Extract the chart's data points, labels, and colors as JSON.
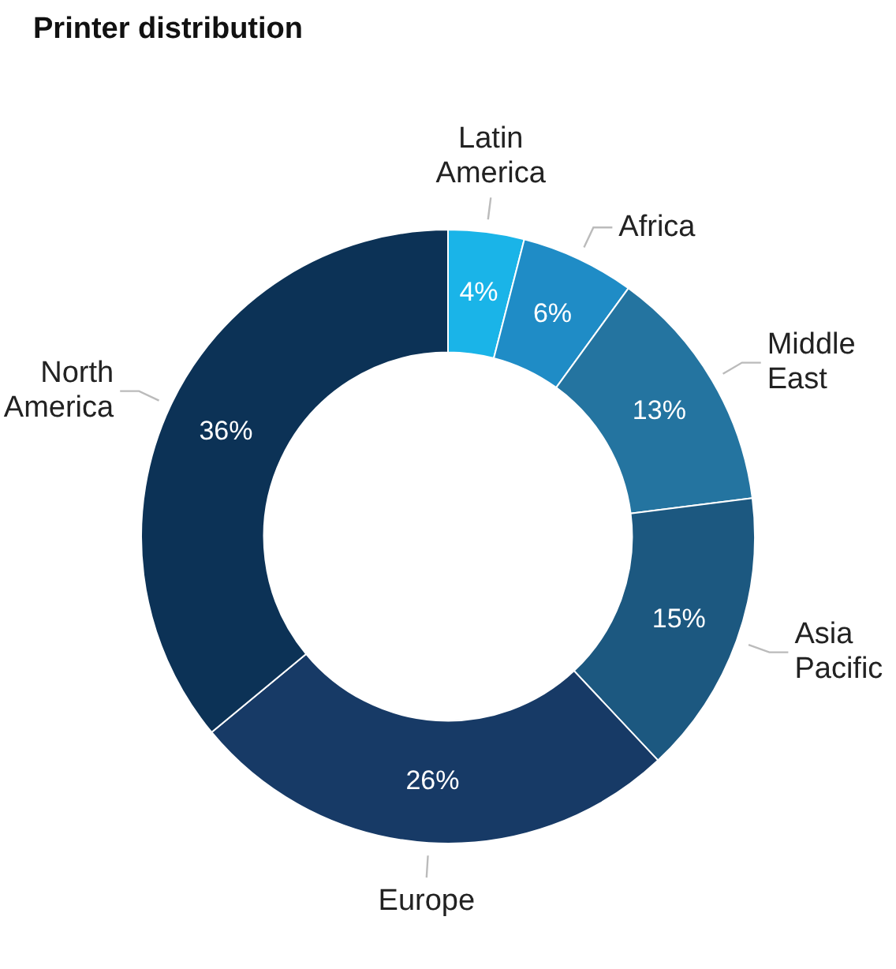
{
  "chart_data": {
    "type": "donut",
    "title": "Printer distribution",
    "categories": [
      "Latin America",
      "Africa",
      "Middle East",
      "Asia Pacific",
      "Europe",
      "North America"
    ],
    "values": [
      4,
      6,
      13,
      15,
      26,
      36
    ],
    "colors": [
      "#1ab4e8",
      "#1f8cc6",
      "#2474a0",
      "#1c5880",
      "#173a66",
      "#0c3256"
    ],
    "value_labels": [
      "4%",
      "6%",
      "13%",
      "15%",
      "26%",
      "36%"
    ],
    "legend": false
  }
}
